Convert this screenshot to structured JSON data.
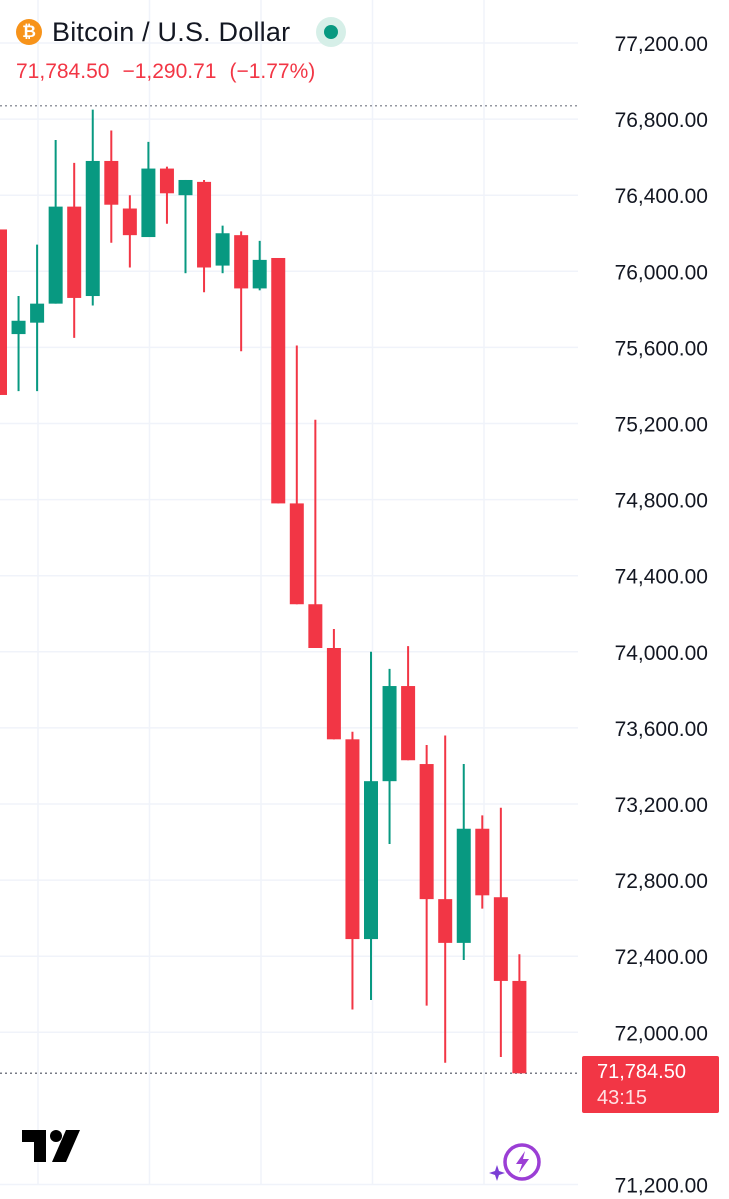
{
  "header": {
    "icon": "bitcoin-icon",
    "title": "Bitcoin / U.S. Dollar",
    "last": "71,784.50",
    "change": "−1,290.71",
    "change_pct": "(−1.77%)",
    "status_color": "#089981"
  },
  "price_label": {
    "price": "71,784.50",
    "countdown": "43:15"
  },
  "colors": {
    "up": "#089981",
    "down": "#f23645",
    "btc": "#f7931a",
    "grid": "#f0f3fa"
  },
  "icons": {
    "brand": "tradingview-logo-icon",
    "flash": "lightning-icon"
  },
  "chart_data": {
    "type": "candlestick",
    "y_ticks": [
      "77,200.00",
      "76,800.00",
      "76,400.00",
      "76,000.00",
      "75,600.00",
      "75,200.00",
      "74,800.00",
      "74,400.00",
      "74,000.00",
      "73,600.00",
      "73,200.00",
      "72,800.00",
      "72,400.00",
      "72,000.00",
      "71,200.00"
    ],
    "y_tick_values": [
      77200,
      76800,
      76400,
      76000,
      75600,
      75200,
      74800,
      74400,
      74000,
      73600,
      73200,
      72800,
      72400,
      72000,
      71200
    ],
    "ylim": [
      71100,
      77400
    ],
    "grid": true,
    "candles": [
      {
        "o": 76220,
        "h": 76220,
        "l": 75350,
        "c": 75350
      },
      {
        "o": 75670,
        "h": 75870,
        "l": 75370,
        "c": 75740
      },
      {
        "o": 75730,
        "h": 76140,
        "l": 75370,
        "c": 75830
      },
      {
        "o": 75830,
        "h": 76690,
        "l": 75830,
        "c": 76340
      },
      {
        "o": 76340,
        "h": 76570,
        "l": 75650,
        "c": 75860
      },
      {
        "o": 75870,
        "h": 76850,
        "l": 75820,
        "c": 76580
      },
      {
        "o": 76580,
        "h": 76740,
        "l": 76150,
        "c": 76350
      },
      {
        "o": 76330,
        "h": 76400,
        "l": 76020,
        "c": 76190
      },
      {
        "o": 76180,
        "h": 76680,
        "l": 76180,
        "c": 76540
      },
      {
        "o": 76540,
        "h": 76550,
        "l": 76250,
        "c": 76410
      },
      {
        "o": 76400,
        "h": 76480,
        "l": 75990,
        "c": 76480
      },
      {
        "o": 76470,
        "h": 76480,
        "l": 75890,
        "c": 76020
      },
      {
        "o": 76030,
        "h": 76240,
        "l": 75990,
        "c": 76200
      },
      {
        "o": 76190,
        "h": 76210,
        "l": 75580,
        "c": 75910
      },
      {
        "o": 75910,
        "h": 76160,
        "l": 75900,
        "c": 76060
      },
      {
        "o": 76070,
        "h": 76070,
        "l": 74780,
        "c": 74780
      },
      {
        "o": 74780,
        "h": 75610,
        "l": 74250,
        "c": 74250
      },
      {
        "o": 74250,
        "h": 75220,
        "l": 74020,
        "c": 74020
      },
      {
        "o": 74020,
        "h": 74120,
        "l": 73540,
        "c": 73540
      },
      {
        "o": 73540,
        "h": 73580,
        "l": 72120,
        "c": 72490
      },
      {
        "o": 72490,
        "h": 74000,
        "l": 72170,
        "c": 73320
      },
      {
        "o": 73320,
        "h": 73910,
        "l": 72990,
        "c": 73820
      },
      {
        "o": 73820,
        "h": 74030,
        "l": 73430,
        "c": 73430
      },
      {
        "o": 73410,
        "h": 73510,
        "l": 72140,
        "c": 72700
      },
      {
        "o": 72700,
        "h": 73560,
        "l": 71840,
        "c": 72470
      },
      {
        "o": 72470,
        "h": 73410,
        "l": 72380,
        "c": 73070
      },
      {
        "o": 73070,
        "h": 73140,
        "l": 72650,
        "c": 72720
      },
      {
        "o": 72710,
        "h": 73180,
        "l": 71870,
        "c": 72270
      },
      {
        "o": 72270,
        "h": 72410,
        "l": 71784.5,
        "c": 71784.5
      }
    ],
    "last_price": 71784.5,
    "prev_close_ref": 76870
  }
}
